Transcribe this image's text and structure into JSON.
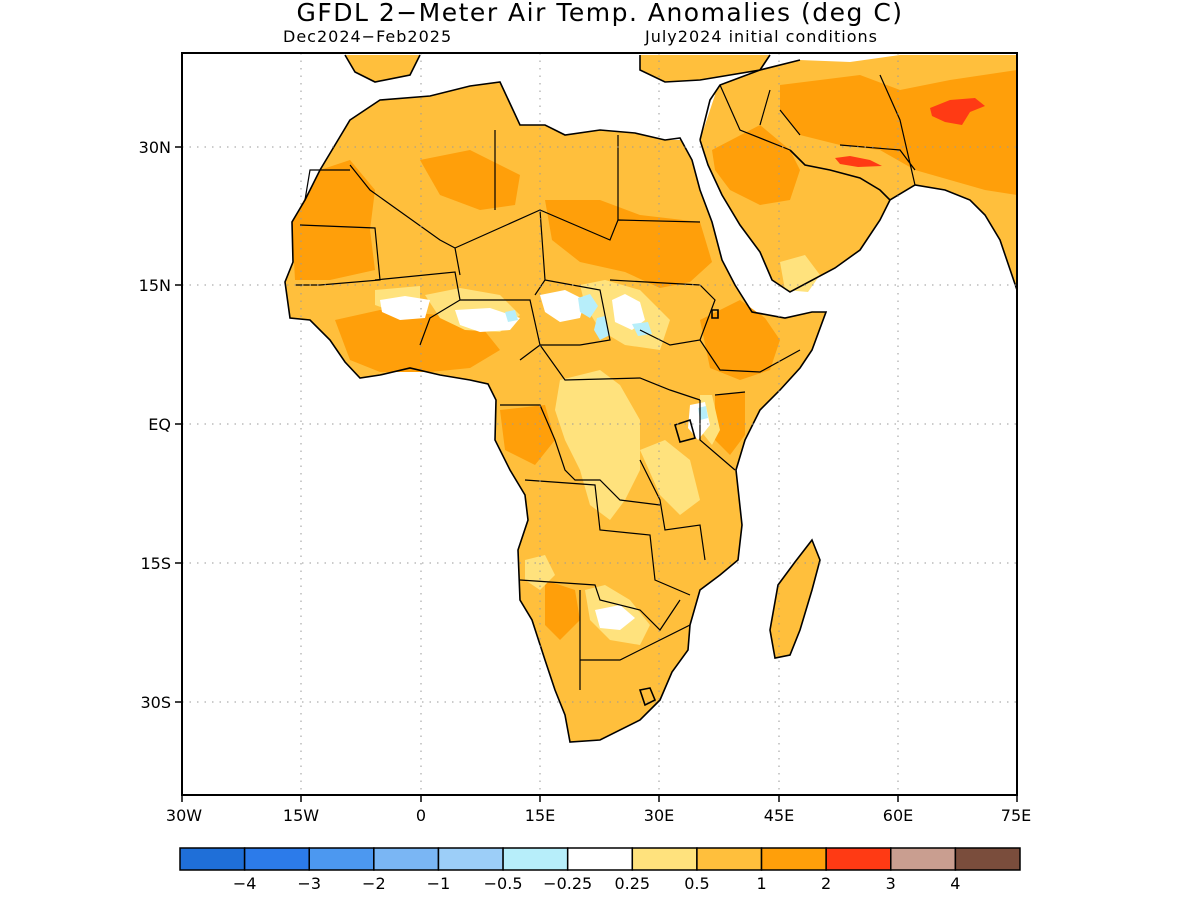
{
  "title": "GFDL 2−Meter Air Temp. Anomalies (deg C)",
  "subtitle_left": "Dec2024−Feb2025",
  "subtitle_right": "July2024 initial conditions",
  "map": {
    "lon_range": [
      -30,
      75
    ],
    "lat_range": [
      -41,
      40
    ],
    "x_ticks": [
      "30W",
      "15W",
      "0",
      "15E",
      "30E",
      "45E",
      "60E",
      "75E"
    ],
    "y_ticks": [
      "30N",
      "15N",
      "EQ",
      "15S",
      "30S"
    ],
    "gridlines": true
  },
  "colorbar": {
    "colors": [
      "#1f6fd8",
      "#2c7bea",
      "#4c98f0",
      "#7ab6f4",
      "#9ccef8",
      "#b7eefa",
      "#ffffff",
      "#ffe27d",
      "#ffbf3c",
      "#ff9f0a",
      "#ff3a14",
      "#c99e90",
      "#7a4d3c"
    ],
    "labels": [
      "−4",
      "−3",
      "−2",
      "−1",
      "−0.5",
      "−0.25",
      "0.25",
      "0.5",
      "1",
      "2",
      "3",
      "4"
    ]
  }
}
